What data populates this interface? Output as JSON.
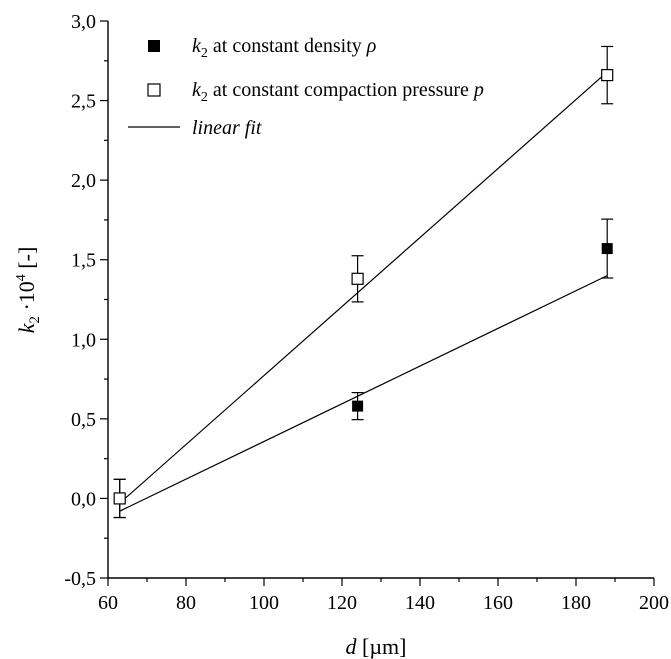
{
  "chart_data": {
    "type": "scatter",
    "title": "",
    "xlabel": {
      "main": "d",
      "unit": " [µm]"
    },
    "ylabel": {
      "main": "k",
      "sub": "2",
      "mid": " ·10",
      "sup": "4",
      "unit": " [-]"
    },
    "xlim": [
      60,
      200
    ],
    "ylim": [
      -0.5,
      3.0
    ],
    "x_ticks": [
      60,
      80,
      100,
      120,
      140,
      160,
      180,
      200
    ],
    "x_tick_labels": [
      "60",
      "80",
      "100",
      "120",
      "140",
      "160",
      "180",
      "200"
    ],
    "y_ticks": [
      -0.5,
      0.0,
      0.5,
      1.0,
      1.5,
      2.0,
      2.5,
      3.0
    ],
    "y_tick_labels": [
      "-0,5",
      "0,0",
      "0,5",
      "1,0",
      "1,5",
      "2,0",
      "2,5",
      "3,0"
    ],
    "grid": false,
    "legend_position": "top-left",
    "series": [
      {
        "name": {
          "main": "k",
          "sub": "2",
          "rest": " at constant density ",
          "sym": "ρ"
        },
        "marker": "filled-square",
        "x": [
          63,
          124,
          188
        ],
        "y": [
          0.0,
          0.58,
          1.57
        ],
        "err": [
          0.12,
          0.085,
          0.185
        ],
        "fit": {
          "x": [
            63,
            188
          ],
          "y": [
            -0.08,
            1.4
          ]
        }
      },
      {
        "name": {
          "main": "k",
          "sub": "2",
          "rest": " at constant compaction pressure ",
          "sym": "p"
        },
        "marker": "open-square",
        "x": [
          63,
          124,
          188
        ],
        "y": [
          0.0,
          1.38,
          2.66
        ],
        "err": [
          0.12,
          0.145,
          0.18
        ],
        "fit": {
          "x": [
            63,
            188
          ],
          "y": [
            -0.03,
            2.68
          ]
        }
      }
    ],
    "fit_legend": "linear fit",
    "colors": {
      "line": "#000000",
      "marker": "#000000",
      "background": "#ffffff"
    }
  }
}
